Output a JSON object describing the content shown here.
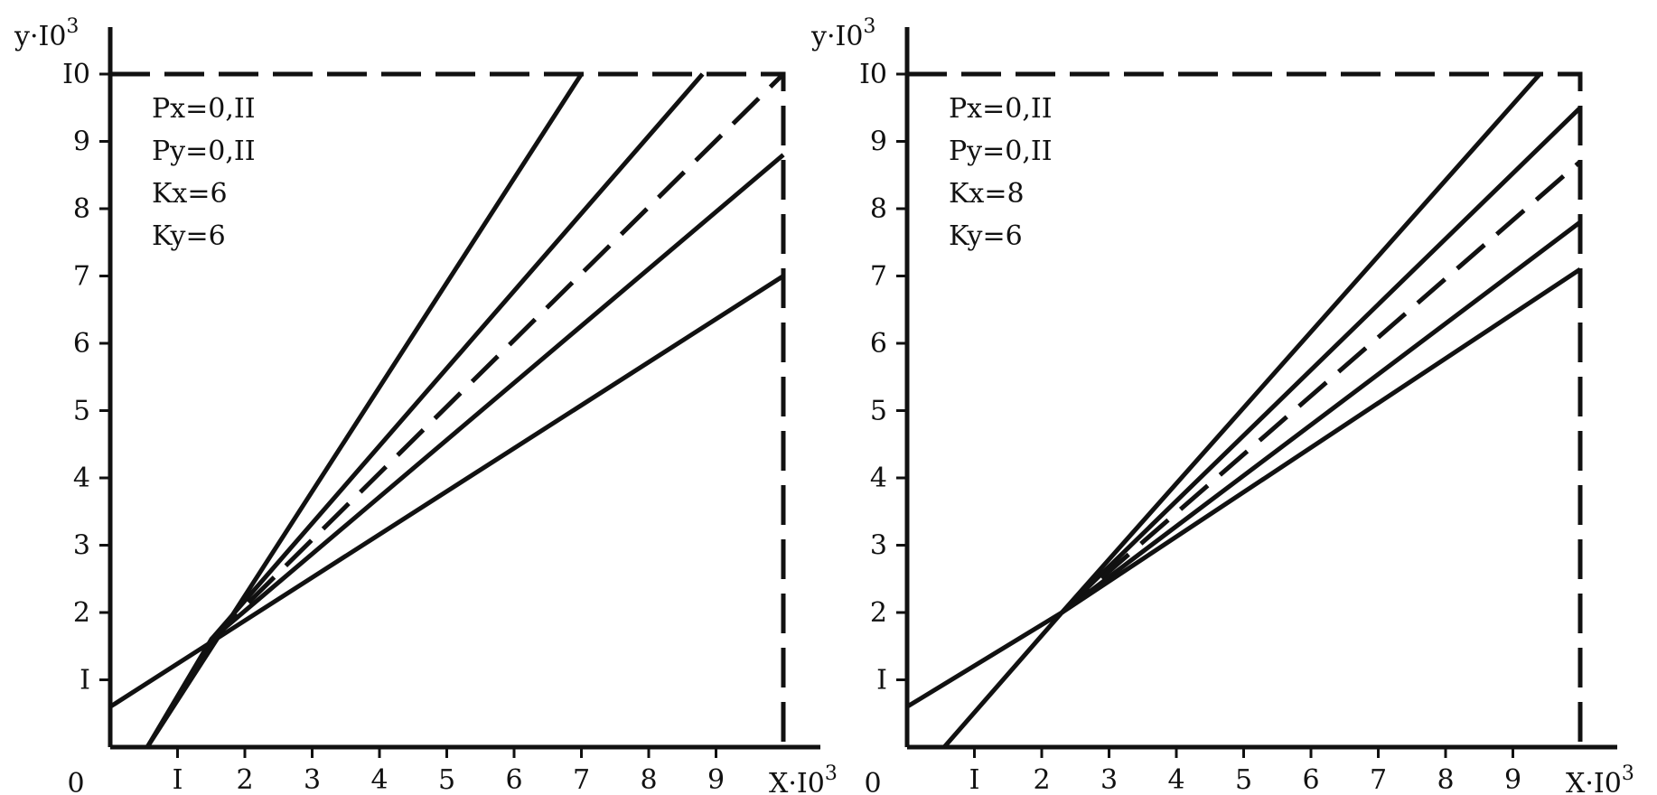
{
  "colors": {
    "ink": "#111111",
    "background": "#ffffff"
  },
  "chart_data": [
    {
      "type": "line",
      "parameters": [
        "Px=0,II",
        "Py=0,II",
        "Kx=6",
        "Ky=6"
      ],
      "xlabel": {
        "base": "X·I0",
        "exp": "3"
      },
      "ylabel": {
        "base": "y·I0",
        "exp": "3"
      },
      "xlim": [
        0,
        10
      ],
      "ylim": [
        0,
        10
      ],
      "origin_label": "0",
      "x_ticks": [
        {
          "value": 1,
          "label": "I"
        },
        {
          "value": 2,
          "label": "2"
        },
        {
          "value": 3,
          "label": "3"
        },
        {
          "value": 4,
          "label": "4"
        },
        {
          "value": 5,
          "label": "5"
        },
        {
          "value": 6,
          "label": "6"
        },
        {
          "value": 7,
          "label": "7"
        },
        {
          "value": 8,
          "label": "8"
        },
        {
          "value": 9,
          "label": "9"
        }
      ],
      "y_ticks": [
        {
          "value": 1,
          "label": "I"
        },
        {
          "value": 2,
          "label": "2"
        },
        {
          "value": 3,
          "label": "3"
        },
        {
          "value": 4,
          "label": "4"
        },
        {
          "value": 5,
          "label": "5"
        },
        {
          "value": 6,
          "label": "6"
        },
        {
          "value": 7,
          "label": "7"
        },
        {
          "value": 8,
          "label": "8"
        },
        {
          "value": 9,
          "label": "9"
        },
        {
          "value": 10,
          "label": "I0"
        }
      ],
      "boundary": {
        "style": "dashed",
        "points": [
          [
            0,
            10
          ],
          [
            10,
            10
          ],
          [
            10,
            0
          ]
        ]
      },
      "series": [
        {
          "style": "solid",
          "points": [
            [
              0.55,
              0
            ],
            [
              7.0,
              10
            ]
          ]
        },
        {
          "style": "solid",
          "points": [
            [
              0.55,
              0
            ],
            [
              1.5,
              1.6
            ],
            [
              8.8,
              10
            ]
          ]
        },
        {
          "style": "dashed",
          "points": [
            [
              1.5,
              1.6
            ],
            [
              10,
              10
            ]
          ]
        },
        {
          "style": "solid",
          "points": [
            [
              1.5,
              1.6
            ],
            [
              10,
              8.8
            ]
          ]
        },
        {
          "style": "solid",
          "points": [
            [
              0,
              0.6
            ],
            [
              10,
              7.0
            ]
          ]
        }
      ]
    },
    {
      "type": "line",
      "parameters": [
        "Px=0,II",
        "Py=0,II",
        "Kx=8",
        "Ky=6"
      ],
      "xlabel": {
        "base": "X·I0",
        "exp": "3"
      },
      "ylabel": {
        "base": "y·I0",
        "exp": "3"
      },
      "xlim": [
        0,
        10
      ],
      "ylim": [
        0,
        10
      ],
      "origin_label": "0",
      "x_ticks": [
        {
          "value": 1,
          "label": "I"
        },
        {
          "value": 2,
          "label": "2"
        },
        {
          "value": 3,
          "label": "3"
        },
        {
          "value": 4,
          "label": "4"
        },
        {
          "value": 5,
          "label": "5"
        },
        {
          "value": 6,
          "label": "6"
        },
        {
          "value": 7,
          "label": "7"
        },
        {
          "value": 8,
          "label": "8"
        },
        {
          "value": 9,
          "label": "9"
        }
      ],
      "y_ticks": [
        {
          "value": 1,
          "label": "I"
        },
        {
          "value": 2,
          "label": "2"
        },
        {
          "value": 3,
          "label": "3"
        },
        {
          "value": 4,
          "label": "4"
        },
        {
          "value": 5,
          "label": "5"
        },
        {
          "value": 6,
          "label": "6"
        },
        {
          "value": 7,
          "label": "7"
        },
        {
          "value": 8,
          "label": "8"
        },
        {
          "value": 9,
          "label": "9"
        },
        {
          "value": 10,
          "label": "I0"
        }
      ],
      "boundary": {
        "style": "dashed",
        "points": [
          [
            0,
            10
          ],
          [
            10,
            10
          ],
          [
            10,
            0
          ]
        ]
      },
      "series": [
        {
          "style": "solid",
          "points": [
            [
              0.55,
              0
            ],
            [
              2.3,
              2.0
            ],
            [
              9.4,
              10
            ]
          ]
        },
        {
          "style": "solid",
          "points": [
            [
              2.3,
              2.0
            ],
            [
              10,
              9.5
            ]
          ]
        },
        {
          "style": "dashed",
          "points": [
            [
              2.3,
              2.0
            ],
            [
              10,
              8.7
            ]
          ]
        },
        {
          "style": "solid",
          "points": [
            [
              2.3,
              2.0
            ],
            [
              10,
              7.8
            ]
          ]
        },
        {
          "style": "solid",
          "points": [
            [
              0,
              0.6
            ],
            [
              2.3,
              2.0
            ],
            [
              10,
              7.1
            ]
          ]
        }
      ]
    }
  ]
}
